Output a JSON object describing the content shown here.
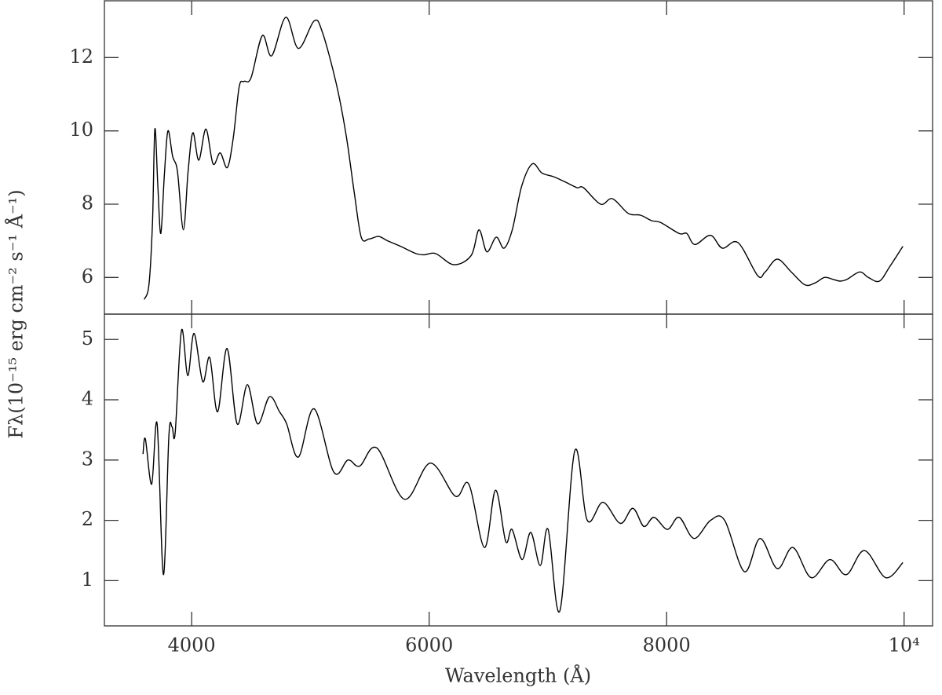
{
  "chart_data": [
    {
      "type": "line",
      "ylabel": "Fλ(10⁻¹⁵ erg cm⁻² s⁻¹ Å⁻¹)",
      "color": "#000000",
      "xlim": [
        3265,
        10240
      ],
      "ylim": [
        5.0,
        13.55
      ],
      "yticks": [
        6,
        8,
        10,
        12
      ],
      "x": [
        3600,
        3640,
        3670,
        3690,
        3715,
        3740,
        3770,
        3800,
        3840,
        3880,
        3930,
        3970,
        4010,
        4060,
        4120,
        4180,
        4240,
        4300,
        4350,
        4400,
        4440,
        4500,
        4595,
        4674,
        4793,
        4899,
        5031,
        5100,
        5217,
        5300,
        5370,
        5428,
        5494,
        5574,
        5650,
        5759,
        5891,
        5960,
        6056,
        6208,
        6354,
        6420,
        6486,
        6565,
        6631,
        6700,
        6780,
        6869,
        6950,
        7048,
        7150,
        7246,
        7300,
        7444,
        7544,
        7676,
        7780,
        7874,
        7950,
        8106,
        8170,
        8238,
        8370,
        8469,
        8602,
        8767,
        8830,
        8932,
        9050,
        9164,
        9250,
        9329,
        9400,
        9461,
        9520,
        9626,
        9700,
        9792,
        9880,
        9990
      ],
      "values": [
        5.4,
        5.8,
        7.5,
        10.05,
        8.5,
        7.2,
        8.8,
        10.0,
        9.3,
        8.9,
        7.3,
        8.9,
        9.95,
        9.2,
        10.05,
        9.1,
        9.4,
        9.0,
        9.8,
        11.2,
        11.35,
        11.45,
        12.6,
        12.05,
        13.1,
        12.25,
        13.0,
        12.7,
        11.3,
        9.9,
        8.3,
        7.1,
        7.05,
        7.12,
        7.0,
        6.85,
        6.65,
        6.62,
        6.65,
        6.35,
        6.6,
        7.3,
        6.7,
        7.1,
        6.8,
        7.3,
        8.5,
        9.1,
        8.85,
        8.75,
        8.6,
        8.45,
        8.45,
        8.0,
        8.15,
        7.75,
        7.7,
        7.55,
        7.5,
        7.2,
        7.2,
        6.9,
        7.15,
        6.8,
        6.95,
        6.05,
        6.15,
        6.5,
        6.15,
        5.8,
        5.85,
        6.0,
        5.95,
        5.9,
        5.95,
        6.15,
        6.0,
        5.9,
        6.3,
        6.85
      ]
    },
    {
      "type": "line",
      "xlabel": "Wavelength (Å)",
      "color": "#000000",
      "xlim": [
        3265,
        10240
      ],
      "ylim": [
        0.25,
        5.42
      ],
      "xticks": [
        4000,
        6000,
        8000,
        {
          "value": 10000,
          "label": "10⁴"
        }
      ],
      "yticks": [
        1,
        2,
        3,
        4,
        5
      ],
      "x": [
        3590,
        3610,
        3663,
        3709,
        3762,
        3808,
        3835,
        3861,
        3914,
        3967,
        4020,
        4093,
        4152,
        4218,
        4298,
        4383,
        4469,
        4555,
        4655,
        4740,
        4800,
        4899,
        5031,
        5197,
        5316,
        5415,
        5560,
        5792,
        6010,
        6221,
        6334,
        6466,
        6559,
        6645,
        6698,
        6783,
        6856,
        6936,
        7002,
        7101,
        7226,
        7332,
        7464,
        7610,
        7716,
        7808,
        7894,
        8007,
        8106,
        8231,
        8370,
        8489,
        8655,
        8787,
        8932,
        9064,
        9217,
        9375,
        9514,
        9666,
        9845,
        9990
      ],
      "values": [
        3.1,
        3.35,
        2.6,
        3.6,
        1.1,
        3.4,
        3.55,
        3.45,
        5.15,
        4.4,
        5.1,
        4.3,
        4.7,
        3.8,
        4.85,
        3.6,
        4.25,
        3.6,
        4.05,
        3.8,
        3.6,
        3.05,
        3.85,
        2.8,
        3.0,
        2.9,
        3.2,
        2.35,
        2.95,
        2.4,
        2.6,
        1.55,
        2.5,
        1.65,
        1.85,
        1.35,
        1.8,
        1.25,
        1.85,
        0.5,
        3.15,
        2.0,
        2.3,
        1.95,
        2.2,
        1.9,
        2.05,
        1.85,
        2.05,
        1.7,
        2.0,
        2.0,
        1.15,
        1.7,
        1.2,
        1.55,
        1.05,
        1.35,
        1.1,
        1.5,
        1.05,
        1.3
      ]
    }
  ]
}
